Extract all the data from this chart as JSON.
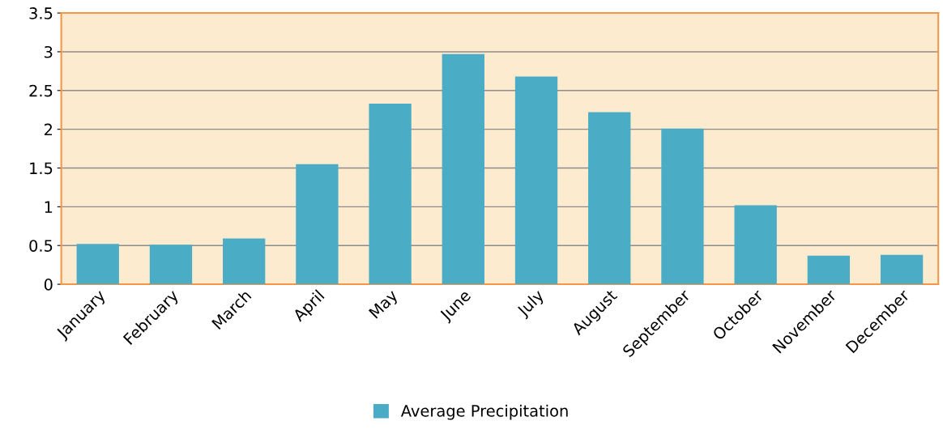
{
  "chart_data": {
    "type": "bar",
    "categories": [
      "January",
      "February",
      "March",
      "April",
      "May",
      "June",
      "July",
      "August",
      "September",
      "October",
      "November",
      "December"
    ],
    "series": [
      {
        "name": "Average Precipitation",
        "color": "#4bacc6",
        "values": [
          0.52,
          0.51,
          0.59,
          1.55,
          2.33,
          2.97,
          2.68,
          2.22,
          2.01,
          1.02,
          0.37,
          0.38
        ]
      }
    ],
    "ylim": [
      0,
      3.5
    ],
    "yticks": [
      0,
      0.5,
      1,
      1.5,
      2,
      2.5,
      3,
      3.5
    ],
    "grid": "y",
    "legend": "bottom"
  }
}
